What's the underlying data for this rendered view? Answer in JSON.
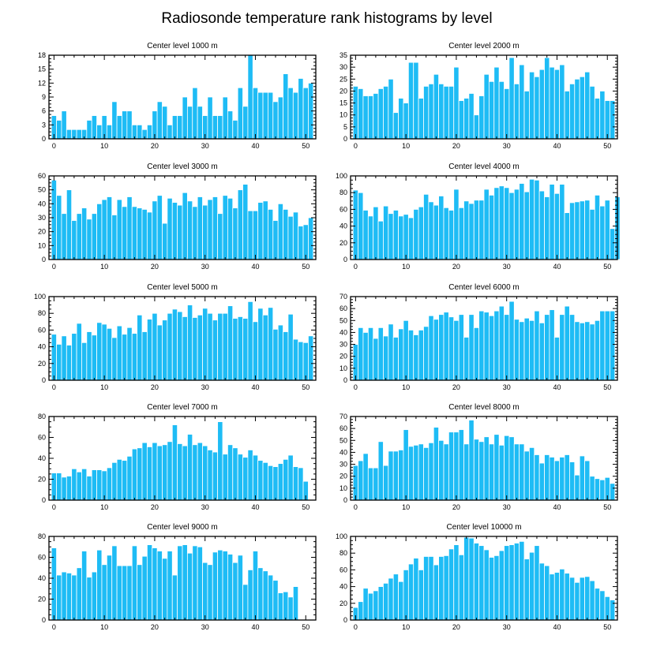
{
  "title": "Radiosonde temperature rank histograms by level",
  "colors": {
    "bar": "#1ebcf5",
    "bar_edge": "#ffffff",
    "axis": "#000000"
  },
  "chart_data": [
    {
      "type": "bar",
      "title": "Center level 1000 m",
      "xlabel": "",
      "ylabel": "",
      "xlim": [
        -1,
        52
      ],
      "ylim": [
        0,
        18
      ],
      "xticks": [
        0,
        10,
        20,
        30,
        40,
        50
      ],
      "yticks": [
        0,
        3,
        6,
        9,
        12,
        15,
        18
      ],
      "values": [
        5,
        4,
        6,
        2,
        2,
        2,
        2,
        4,
        5,
        3,
        5,
        3,
        8,
        5,
        6,
        6,
        3,
        3,
        2,
        3,
        6,
        8,
        7,
        3,
        5,
        5,
        9,
        7,
        11,
        7,
        5,
        9,
        5,
        5,
        9,
        6,
        4,
        11,
        7,
        18,
        11,
        10,
        10,
        10,
        8,
        9,
        14,
        11,
        10,
        13,
        11,
        12
      ]
    },
    {
      "type": "bar",
      "title": "Center level 2000 m",
      "xlabel": "",
      "ylabel": "",
      "xlim": [
        -1,
        52
      ],
      "ylim": [
        0,
        35
      ],
      "xticks": [
        0,
        10,
        20,
        30,
        40,
        50
      ],
      "yticks": [
        0,
        5,
        10,
        15,
        20,
        25,
        30,
        35
      ],
      "values": [
        22,
        21,
        18,
        18,
        19,
        21,
        22,
        25,
        11,
        17,
        15,
        32,
        32,
        17,
        22,
        23,
        27,
        23,
        22,
        22,
        30,
        16,
        17,
        19,
        10,
        18,
        27,
        24,
        30,
        24,
        21,
        34,
        23,
        31,
        20,
        28,
        26,
        29,
        34,
        30,
        29,
        31,
        20,
        23,
        25,
        26,
        28,
        22,
        17,
        20,
        16,
        16
      ]
    },
    {
      "type": "bar",
      "title": "Center level 3000 m",
      "xlabel": "",
      "ylabel": "",
      "xlim": [
        -1,
        52
      ],
      "ylim": [
        0,
        60
      ],
      "xticks": [
        0,
        10,
        20,
        30,
        40,
        50
      ],
      "yticks": [
        0,
        10,
        20,
        30,
        40,
        50,
        60
      ],
      "values": [
        57,
        46,
        33,
        50,
        28,
        33,
        37,
        29,
        33,
        40,
        43,
        45,
        32,
        43,
        38,
        45,
        38,
        37,
        36,
        34,
        42,
        46,
        26,
        44,
        41,
        39,
        48,
        42,
        38,
        45,
        39,
        43,
        45,
        33,
        46,
        44,
        37,
        50,
        54,
        35,
        35,
        41,
        42,
        36,
        28,
        40,
        36,
        31,
        34,
        24,
        25,
        30
      ]
    },
    {
      "type": "bar",
      "title": "Center level 4000 m",
      "xlabel": "",
      "ylabel": "",
      "xlim": [
        -1,
        52
      ],
      "ylim": [
        0,
        100
      ],
      "xticks": [
        0,
        10,
        20,
        30,
        40,
        50
      ],
      "yticks": [
        0,
        20,
        40,
        60,
        80,
        100
      ],
      "values": [
        83,
        80,
        59,
        52,
        63,
        46,
        64,
        55,
        59,
        52,
        54,
        50,
        60,
        63,
        78,
        69,
        65,
        76,
        62,
        59,
        84,
        62,
        70,
        67,
        71,
        71,
        84,
        77,
        86,
        88,
        86,
        80,
        84,
        91,
        81,
        96,
        95,
        82,
        75,
        90,
        79,
        90,
        56,
        68,
        69,
        70,
        71,
        60,
        77,
        64,
        71,
        37,
        75
      ]
    },
    {
      "type": "bar",
      "title": "Center level 5000 m",
      "xlabel": "",
      "ylabel": "",
      "xlim": [
        -1,
        52
      ],
      "ylim": [
        0,
        100
      ],
      "xticks": [
        0,
        10,
        20,
        30,
        40,
        50
      ],
      "yticks": [
        0,
        20,
        40,
        60,
        80,
        100
      ],
      "values": [
        55,
        43,
        53,
        42,
        56,
        68,
        45,
        58,
        54,
        69,
        67,
        62,
        51,
        65,
        55,
        63,
        56,
        78,
        58,
        73,
        80,
        66,
        72,
        80,
        85,
        82,
        76,
        90,
        75,
        78,
        86,
        80,
        72,
        80,
        80,
        89,
        74,
        76,
        74,
        94,
        70,
        86,
        78,
        87,
        61,
        66,
        58,
        79,
        49,
        46,
        45,
        53
      ]
    },
    {
      "type": "bar",
      "title": "Center level 6000 m",
      "xlabel": "",
      "ylabel": "",
      "xlim": [
        -1,
        52
      ],
      "ylim": [
        0,
        70
      ],
      "xticks": [
        0,
        10,
        20,
        30,
        40,
        50
      ],
      "yticks": [
        0,
        10,
        20,
        30,
        40,
        50,
        60,
        70
      ],
      "values": [
        30,
        44,
        40,
        44,
        35,
        44,
        37,
        47,
        36,
        43,
        50,
        42,
        38,
        42,
        45,
        54,
        51,
        55,
        57,
        53,
        50,
        55,
        36,
        55,
        44,
        58,
        57,
        54,
        58,
        62,
        55,
        66,
        51,
        49,
        52,
        50,
        58,
        48,
        55,
        59,
        36,
        55,
        62,
        55,
        49,
        48,
        49,
        47,
        50,
        58,
        58,
        58
      ]
    },
    {
      "type": "bar",
      "title": "Center level 7000 m",
      "xlabel": "",
      "ylabel": "",
      "xlim": [
        -1,
        52
      ],
      "ylim": [
        0,
        80
      ],
      "xticks": [
        0,
        10,
        20,
        30,
        40,
        50
      ],
      "yticks": [
        0,
        20,
        40,
        60,
        80
      ],
      "values": [
        26,
        26,
        22,
        23,
        30,
        27,
        30,
        23,
        29,
        29,
        28,
        31,
        36,
        39,
        38,
        42,
        49,
        50,
        55,
        51,
        55,
        52,
        53,
        56,
        72,
        54,
        52,
        63,
        53,
        55,
        52,
        48,
        46,
        75,
        44,
        53,
        50,
        44,
        41,
        48,
        43,
        38,
        36,
        33,
        32,
        35,
        39,
        43,
        32,
        31,
        18
      ]
    },
    {
      "type": "bar",
      "title": "Center level 8000 m",
      "xlabel": "",
      "ylabel": "",
      "xlim": [
        -1,
        52
      ],
      "ylim": [
        0,
        70
      ],
      "xticks": [
        0,
        10,
        20,
        30,
        40,
        50
      ],
      "yticks": [
        0,
        10,
        20,
        30,
        40,
        50,
        60,
        70
      ],
      "values": [
        29,
        33,
        39,
        27,
        27,
        49,
        29,
        41,
        41,
        42,
        59,
        45,
        46,
        47,
        44,
        48,
        61,
        50,
        47,
        57,
        57,
        59,
        47,
        67,
        51,
        49,
        53,
        47,
        55,
        46,
        54,
        53,
        47,
        47,
        41,
        44,
        38,
        31,
        38,
        36,
        33,
        36,
        38,
        32,
        21,
        37,
        33,
        20,
        18,
        17,
        19,
        14
      ]
    },
    {
      "type": "bar",
      "title": "Center level 9000 m",
      "xlabel": "",
      "ylabel": "",
      "xlim": [
        -1,
        52
      ],
      "ylim": [
        0,
        80
      ],
      "xticks": [
        0,
        10,
        20,
        30,
        40,
        50
      ],
      "yticks": [
        0,
        20,
        40,
        60,
        80
      ],
      "values": [
        69,
        43,
        46,
        45,
        43,
        50,
        66,
        41,
        46,
        67,
        53,
        62,
        71,
        52,
        52,
        52,
        71,
        53,
        61,
        72,
        69,
        66,
        59,
        66,
        43,
        71,
        72,
        64,
        71,
        70,
        55,
        53,
        65,
        67,
        66,
        63,
        55,
        62,
        34,
        48,
        66,
        50,
        47,
        43,
        38,
        26,
        27,
        22,
        32
      ]
    },
    {
      "type": "bar",
      "title": "Center level 10000 m",
      "xlabel": "",
      "ylabel": "",
      "xlim": [
        -1,
        52
      ],
      "ylim": [
        0,
        100
      ],
      "xticks": [
        0,
        10,
        20,
        30,
        40,
        50
      ],
      "yticks": [
        0,
        20,
        40,
        60,
        80,
        100
      ],
      "values": [
        15,
        22,
        38,
        32,
        35,
        40,
        44,
        50,
        55,
        46,
        60,
        67,
        74,
        60,
        76,
        76,
        66,
        76,
        77,
        85,
        90,
        78,
        99,
        98,
        92,
        89,
        84,
        75,
        77,
        83,
        89,
        90,
        92,
        94,
        73,
        81,
        89,
        68,
        65,
        55,
        57,
        61,
        56,
        51,
        45,
        51,
        52,
        47,
        38,
        35,
        28,
        24
      ]
    }
  ]
}
